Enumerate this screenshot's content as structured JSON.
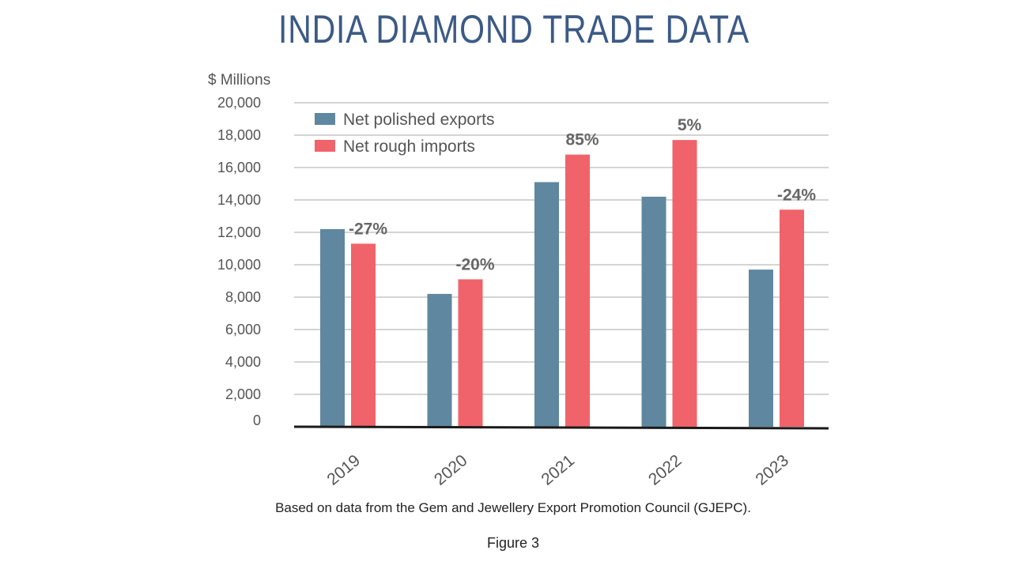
{
  "chart_data": {
    "type": "bar",
    "title": "INDIA DIAMOND TRADE DATA",
    "ylabel": "$ Millions",
    "xlabel": "",
    "ylim": [
      0,
      20000
    ],
    "yticks": [
      0,
      2000,
      4000,
      6000,
      8000,
      10000,
      12000,
      14000,
      16000,
      18000,
      20000
    ],
    "ytick_labels": [
      "0",
      "2,000",
      "4,000",
      "6,000",
      "8,000",
      "10,000",
      "12,000",
      "14,000",
      "16,000",
      "18,000",
      "20,000"
    ],
    "categories": [
      "2019",
      "2020",
      "2021",
      "2022",
      "2023"
    ],
    "series": [
      {
        "name": "Net polished exports",
        "color": "#5f87a0",
        "values": [
          12200,
          8200,
          15100,
          14200,
          9700
        ]
      },
      {
        "name": "Net rough imports",
        "color": "#f0636b",
        "values": [
          11300,
          9100,
          16800,
          17700,
          13400
        ]
      }
    ],
    "annotations": [
      "-27%",
      "-20%",
      "85%",
      "5%",
      "-24%"
    ],
    "grid": true,
    "legend_position": "top-left"
  },
  "caption": "Based on data from the Gem and Jewellery Export Promotion Council (GJEPC).",
  "figure_label": "Figure 3"
}
